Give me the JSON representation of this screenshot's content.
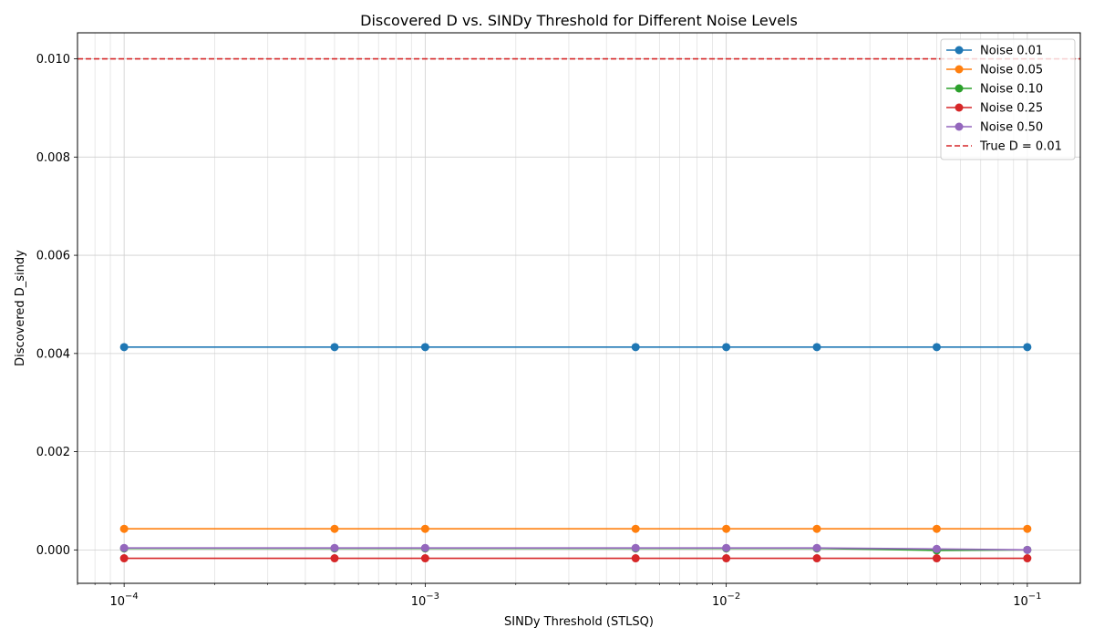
{
  "chart_data": {
    "type": "line",
    "title": "Discovered D vs. SINDy Threshold for Different Noise Levels",
    "xlabel": "SINDy Threshold (STLSQ)",
    "ylabel": "Discovered D_sindy",
    "xscale": "log",
    "xlim": [
      7e-05,
      0.15
    ],
    "ylim": [
      -0.00068,
      0.01053
    ],
    "x": [
      0.0001,
      0.0005,
      0.001,
      0.005,
      0.01,
      0.02,
      0.05,
      0.1
    ],
    "x_ticks": [
      {
        "value": 0.0001,
        "base": "10",
        "exp": "−4"
      },
      {
        "value": 0.001,
        "base": "10",
        "exp": "−3"
      },
      {
        "value": 0.01,
        "base": "10",
        "exp": "−2"
      },
      {
        "value": 0.1,
        "base": "10",
        "exp": "−1"
      }
    ],
    "y_ticks": [
      {
        "value": 0.0,
        "label": "0.000"
      },
      {
        "value": 0.002,
        "label": "0.002"
      },
      {
        "value": 0.004,
        "label": "0.004"
      },
      {
        "value": 0.006,
        "label": "0.006"
      },
      {
        "value": 0.008,
        "label": "0.008"
      },
      {
        "value": 0.01,
        "label": "0.010"
      }
    ],
    "grid": true,
    "legend_position": "top-right",
    "series": [
      {
        "name": "Noise 0.01",
        "color": "#1f77b4",
        "values": [
          0.00413,
          0.00413,
          0.00413,
          0.00413,
          0.00413,
          0.00413,
          0.00413,
          0.00413
        ]
      },
      {
        "name": "Noise 0.05",
        "color": "#ff7f0e",
        "values": [
          0.00043,
          0.00043,
          0.00043,
          0.00043,
          0.00043,
          0.00043,
          0.00043,
          0.00043
        ]
      },
      {
        "name": "Noise 0.10",
        "color": "#2ca02c",
        "values": [
          3e-05,
          3e-05,
          3e-05,
          3e-05,
          3e-05,
          3e-05,
          -1e-05,
          0.0
        ]
      },
      {
        "name": "Noise 0.25",
        "color": "#d62728",
        "values": [
          -0.00017,
          -0.00017,
          -0.00017,
          -0.00017,
          -0.00017,
          -0.00017,
          -0.00017,
          -0.00017
        ]
      },
      {
        "name": "Noise 0.50",
        "color": "#9467bd",
        "values": [
          4e-05,
          4e-05,
          4e-05,
          4e-05,
          4e-05,
          4e-05,
          2e-05,
          0.0
        ]
      }
    ],
    "reference_line": {
      "name": "True D = 0.01",
      "value": 0.01,
      "color": "#d62728",
      "style": "dashed"
    }
  }
}
